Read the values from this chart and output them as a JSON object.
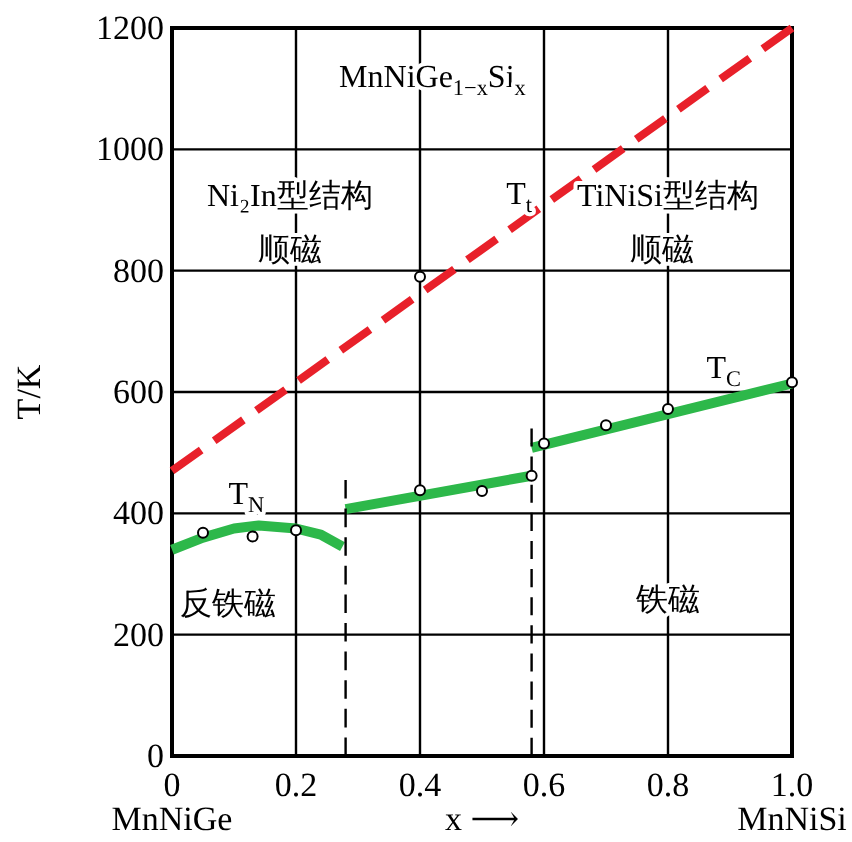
{
  "chart_data": {
    "type": "line",
    "ylabel": "T/K",
    "xlabel": "x ⟶",
    "xlim": [
      0,
      1
    ],
    "ylim": [
      0,
      1200
    ],
    "xticks": [
      {
        "value": 0,
        "label": "0\nMnNiGe"
      },
      0.2,
      0.4,
      0.6,
      0.8,
      {
        "value": 1,
        "label": "1.0\nMnNiSi"
      }
    ],
    "yticks": [
      0,
      200,
      400,
      600,
      800,
      1000,
      1200
    ],
    "grid": true,
    "series": [
      {
        "color": "#e8202a",
        "line_style": "dashed",
        "x": [
          0,
          1
        ],
        "values": [
          470,
          1200
        ]
      },
      {
        "color": "#2db84a",
        "line_style": "solid",
        "x": [
          0,
          0.05,
          0.1,
          0.14,
          0.2,
          0.24,
          0.275
        ],
        "values": [
          340,
          360,
          375,
          380,
          375,
          365,
          345
        ]
      },
      {
        "color": "#2db84a",
        "line_style": "solid",
        "x": [
          0.28,
          0.58
        ],
        "values": [
          407,
          462
        ]
      },
      {
        "color": "#2db84a",
        "line_style": "solid",
        "x": [
          0.58,
          1.0
        ],
        "values": [
          508,
          614
        ]
      },
      {
        "color": "#000000",
        "line_style": "dashed",
        "x": [
          0.28,
          0.28
        ],
        "values": [
          0,
          455
        ]
      },
      {
        "color": "#000000",
        "line_style": "dashed",
        "x": [
          0.58,
          0.58
        ],
        "values": [
          0,
          540
        ]
      },
      {
        "type": "scatter",
        "color": "#000000",
        "marker": "circle",
        "x": [
          0.05,
          0.13,
          0.2,
          0.4,
          0.5,
          0.58,
          0.6,
          0.7,
          0.8,
          1.0,
          0.4
        ],
        "values": [
          368,
          362,
          372,
          438,
          437,
          462,
          515,
          545,
          572,
          616,
          790
        ]
      }
    ],
    "annotations": [
      "MnNiGe$_{1−x}$Si$_{x}$",
      "Ni₂In型结构",
      "顺磁",
      "T$_{t}$",
      "TiNiSi型结构",
      "顺磁",
      "T$_{N}$",
      "反铁磁",
      "T$_{C}$",
      "铁磁"
    ]
  }
}
